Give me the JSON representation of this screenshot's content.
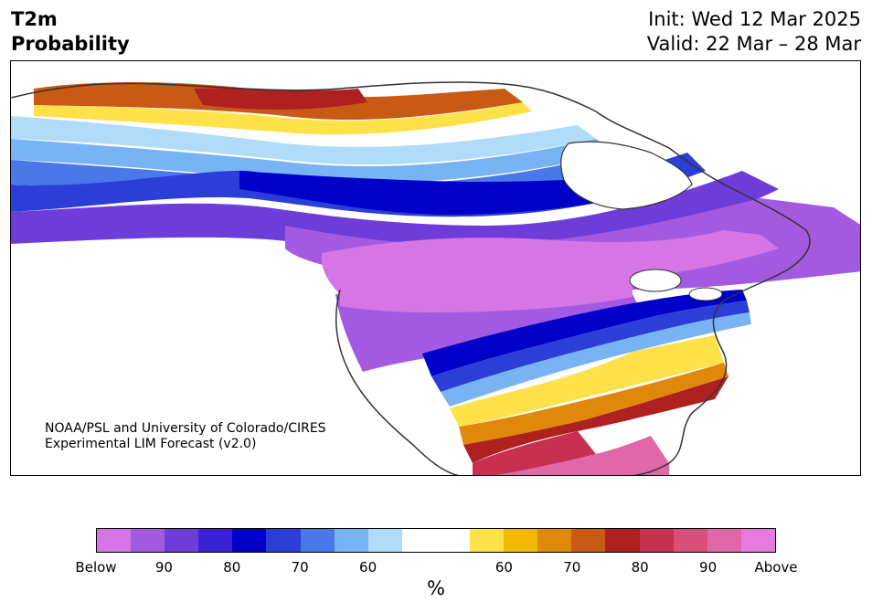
{
  "header": {
    "title_line1": "T2m",
    "title_line2": "Probability",
    "init": "Init: Wed 12 Mar 2025",
    "valid": "Valid: 22 Mar – 28 Mar"
  },
  "map": {
    "region": "North America",
    "credit_line1": "NOAA/PSL and University of Colorado/CIRES",
    "credit_line2": "Experimental LIM Forecast (v2.0)"
  },
  "colorbar": {
    "unit": "%",
    "tick_labels": [
      "Below",
      "90",
      "80",
      "70",
      "60",
      "60",
      "70",
      "80",
      "90",
      "Above"
    ],
    "colors": [
      "#d676e6",
      "#a45ae0",
      "#6e3cd9",
      "#3a1fd4",
      "#0000c8",
      "#2c3ed8",
      "#4a78e8",
      "#78b4f4",
      "#b0dcfa",
      "#ffffff",
      "#ffffff",
      "#ffe14a",
      "#f0b800",
      "#e0880a",
      "#c85a14",
      "#b02020",
      "#c83050",
      "#d8507a",
      "#e068a8",
      "#e67adc"
    ]
  }
}
